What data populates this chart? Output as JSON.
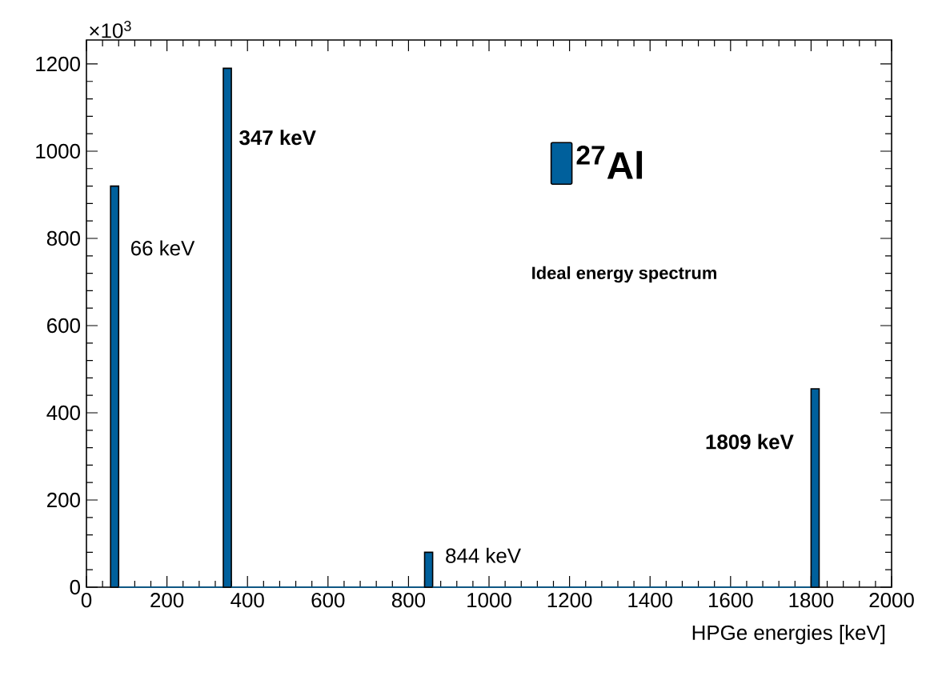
{
  "chart_data": {
    "type": "histogram",
    "xlabel": "HPGe energies [keV]",
    "bins": [
      60,
      80,
      340,
      360,
      840,
      860,
      1800,
      1820
    ],
    "series": [
      {
        "name": "$^{27}$Al",
        "color": "#00609c",
        "values": [
          920,
          0,
          1190,
          0,
          80,
          0,
          455
        ]
      }
    ],
    "xlim": [
      0,
      2000
    ],
    "ylim": [
      0,
      1255
    ],
    "xticks": [
      0,
      200,
      400,
      600,
      800,
      1000,
      1200,
      1400,
      1600,
      1800,
      2000
    ],
    "yticks": [
      0,
      200,
      400,
      600,
      800,
      1000,
      1200
    ],
    "legend": "top right",
    "annotations": [
      "×10$^{3}$",
      "**Ideal energy spectrum**",
      "66 keV",
      "**347 keV**",
      "844 keV",
      "**1809  keV**"
    ],
    "grid": false
  }
}
